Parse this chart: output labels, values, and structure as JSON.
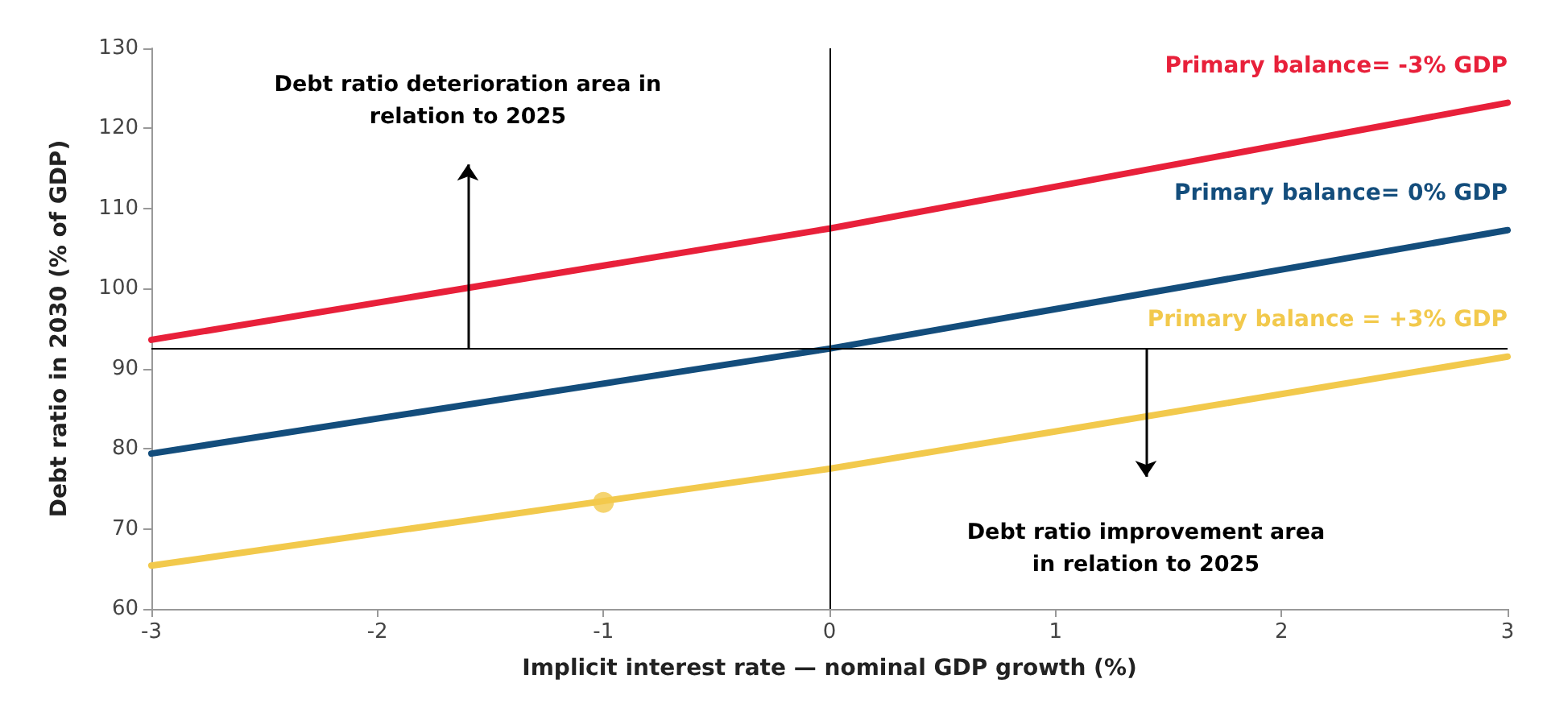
{
  "chart_data": {
    "type": "line",
    "xlabel": "Implicit interest rate — nominal GDP growth (%)",
    "ylabel": "Debt ratio in 2030 (% of GDP)",
    "x": [
      -3,
      0,
      3
    ],
    "series": [
      {
        "name": "Primary balance= -3% GDP",
        "color": "#e8203a",
        "values": [
          93.6,
          107.5,
          123.2
        ]
      },
      {
        "name": "Primary balance= 0% GDP",
        "color": "#134d7c",
        "values": [
          79.4,
          92.5,
          107.3
        ]
      },
      {
        "name": "Primary balance = +3% GDP",
        "color": "#f2c94c",
        "values": [
          65.4,
          77.5,
          91.5
        ]
      },
      {
        "type": "scatter",
        "color": "#f2c94c",
        "x": [
          -1
        ],
        "values": [
          73.3
        ]
      }
    ],
    "xlim": [
      -3,
      3
    ],
    "xticks": [
      -3,
      -2,
      -1,
      0,
      1,
      2,
      3
    ],
    "ylim": [
      60,
      130
    ],
    "yticks": [
      60,
      70,
      80,
      90,
      100,
      110,
      120,
      130
    ],
    "grid": false,
    "line_style": "solid",
    "ref_lines": [
      {
        "axis": "y",
        "value": 92.5,
        "color": "#000000"
      },
      {
        "axis": "x",
        "value": 0,
        "color": "#000000"
      }
    ],
    "annotations": [
      "Debt ratio deterioration area in\nrelation to 2025",
      "Debt ratio improvement area\nin relation to 2025"
    ]
  }
}
